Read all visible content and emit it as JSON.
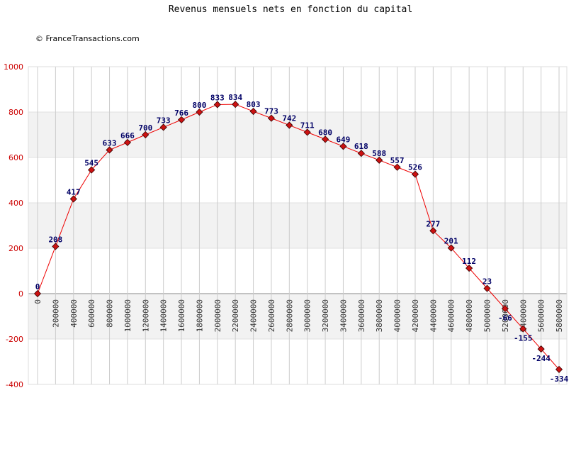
{
  "title": "Revenus mensuels nets en fonction du capital",
  "copyright": "© FranceTransactions.com",
  "colors": {
    "line": "#ee0000",
    "marker": "#cc1111",
    "band": "#f2f2f2",
    "grid": "#cccccc",
    "ytick": "#cc0000",
    "label": "#000066"
  },
  "chart_data": {
    "type": "line",
    "title": "Revenus mensuels nets en fonction du capital",
    "xlabel": "",
    "ylabel": "",
    "ylim": [
      -400,
      1000
    ],
    "yticks": [
      "-400",
      "-200",
      "0",
      "200",
      "400",
      "600",
      "800",
      "1000"
    ],
    "x": [
      0,
      200000,
      400000,
      600000,
      800000,
      1000000,
      1200000,
      1400000,
      1600000,
      1800000,
      2000000,
      2200000,
      2400000,
      2600000,
      2800000,
      3000000,
      3200000,
      3400000,
      3600000,
      3800000,
      4000000,
      4200000,
      4400000,
      4600000,
      4800000,
      5000000,
      5200000,
      5400000,
      5600000,
      5800000
    ],
    "xtick_labels": [
      "0",
      "200000",
      "400000",
      "600000",
      "800000",
      "1000000",
      "1200000",
      "1400000",
      "1600000",
      "1800000",
      "2000000",
      "2200000",
      "2400000",
      "2600000",
      "2800000",
      "3000000",
      "3200000",
      "3400000",
      "3600000",
      "3800000",
      "4000000",
      "4200000",
      "4400000",
      "4600000",
      "4800000",
      "5000000",
      "5200000",
      "5400000",
      "5600000",
      "5800000"
    ],
    "values": [
      0,
      208,
      417,
      545,
      633,
      666,
      700,
      733,
      766,
      800,
      833,
      834,
      803,
      773,
      742,
      711,
      680,
      649,
      618,
      588,
      557,
      526,
      277,
      201,
      112,
      23,
      -66,
      -155,
      -244,
      -334
    ],
    "grid": true,
    "legend": "none"
  }
}
